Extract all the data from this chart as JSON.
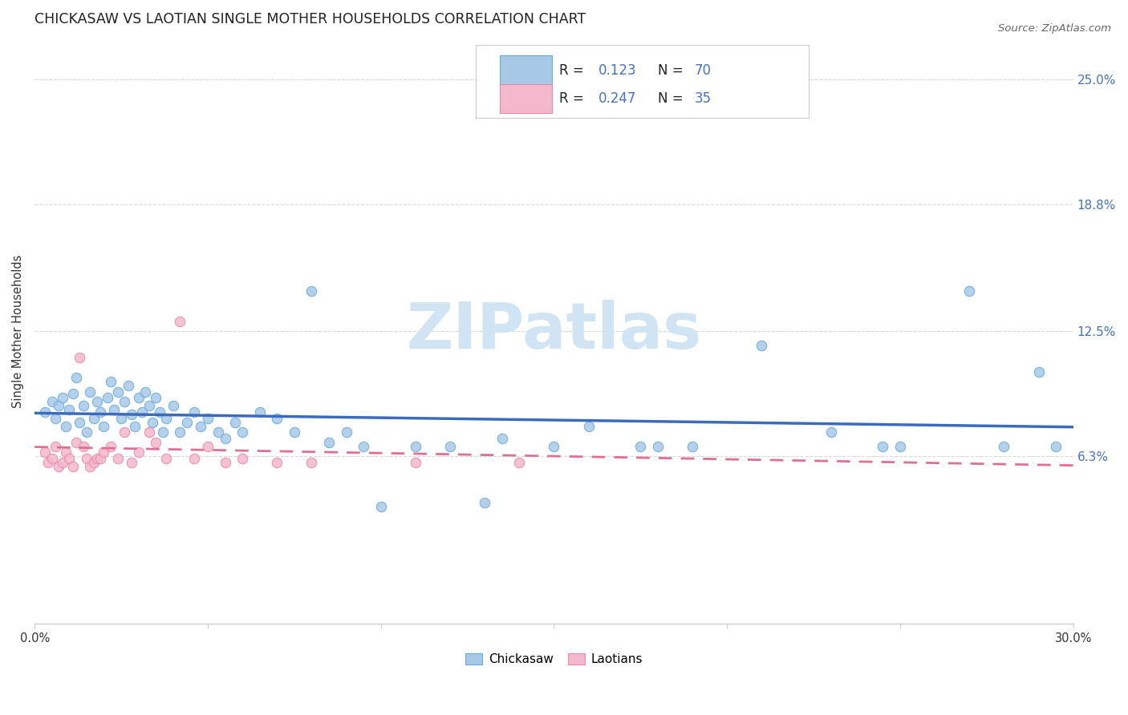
{
  "title": "CHICKASAW VS LAOTIAN SINGLE MOTHER HOUSEHOLDS CORRELATION CHART",
  "source": "Source: ZipAtlas.com",
  "ylabel": "Single Mother Households",
  "ytick_values": [
    0.063,
    0.125,
    0.188,
    0.25
  ],
  "ytick_labels": [
    "6.3%",
    "12.5%",
    "18.8%",
    "25.0%"
  ],
  "xlim": [
    0.0,
    0.3
  ],
  "ylim": [
    -0.02,
    0.27
  ],
  "chickasaw_color": "#a8c8e8",
  "chickasaw_edge": "#6aaad8",
  "laotian_color": "#f4b8cc",
  "laotian_edge": "#e888aa",
  "trend_chickasaw_color": "#3a6bbf",
  "trend_laotian_color": "#e07090",
  "watermark": "ZIPatlas",
  "watermark_color": "#d0e4f4",
  "grid_color": "#d8d8d8",
  "chickasaw_x": [
    0.003,
    0.005,
    0.006,
    0.007,
    0.008,
    0.009,
    0.01,
    0.011,
    0.012,
    0.013,
    0.014,
    0.015,
    0.016,
    0.017,
    0.018,
    0.019,
    0.02,
    0.021,
    0.022,
    0.023,
    0.024,
    0.025,
    0.026,
    0.027,
    0.028,
    0.029,
    0.03,
    0.031,
    0.032,
    0.033,
    0.034,
    0.035,
    0.036,
    0.037,
    0.038,
    0.04,
    0.042,
    0.044,
    0.046,
    0.048,
    0.05,
    0.053,
    0.055,
    0.058,
    0.06,
    0.065,
    0.07,
    0.075,
    0.08,
    0.085,
    0.09,
    0.1,
    0.11,
    0.12,
    0.135,
    0.15,
    0.16,
    0.175,
    0.19,
    0.21,
    0.23,
    0.25,
    0.27,
    0.28,
    0.29,
    0.295,
    0.245,
    0.18,
    0.13,
    0.095
  ],
  "chickasaw_y": [
    0.085,
    0.09,
    0.082,
    0.088,
    0.092,
    0.078,
    0.086,
    0.094,
    0.102,
    0.08,
    0.088,
    0.075,
    0.095,
    0.082,
    0.09,
    0.085,
    0.078,
    0.092,
    0.1,
    0.086,
    0.095,
    0.082,
    0.09,
    0.098,
    0.084,
    0.078,
    0.092,
    0.085,
    0.095,
    0.088,
    0.08,
    0.092,
    0.085,
    0.075,
    0.082,
    0.088,
    0.075,
    0.08,
    0.085,
    0.078,
    0.082,
    0.075,
    0.072,
    0.08,
    0.075,
    0.085,
    0.082,
    0.075,
    0.145,
    0.07,
    0.075,
    0.038,
    0.068,
    0.068,
    0.072,
    0.068,
    0.078,
    0.068,
    0.068,
    0.118,
    0.075,
    0.068,
    0.145,
    0.068,
    0.105,
    0.068,
    0.068,
    0.068,
    0.04,
    0.068
  ],
  "laotian_x": [
    0.003,
    0.004,
    0.005,
    0.006,
    0.007,
    0.008,
    0.009,
    0.01,
    0.011,
    0.012,
    0.013,
    0.014,
    0.015,
    0.016,
    0.017,
    0.018,
    0.019,
    0.02,
    0.022,
    0.024,
    0.026,
    0.028,
    0.03,
    0.033,
    0.035,
    0.038,
    0.042,
    0.046,
    0.05,
    0.055,
    0.06,
    0.07,
    0.08,
    0.11,
    0.14
  ],
  "laotian_y": [
    0.065,
    0.06,
    0.062,
    0.068,
    0.058,
    0.06,
    0.065,
    0.062,
    0.058,
    0.07,
    0.112,
    0.068,
    0.062,
    0.058,
    0.06,
    0.062,
    0.062,
    0.065,
    0.068,
    0.062,
    0.075,
    0.06,
    0.065,
    0.075,
    0.07,
    0.062,
    0.13,
    0.062,
    0.068,
    0.06,
    0.062,
    0.06,
    0.06,
    0.06,
    0.06
  ]
}
